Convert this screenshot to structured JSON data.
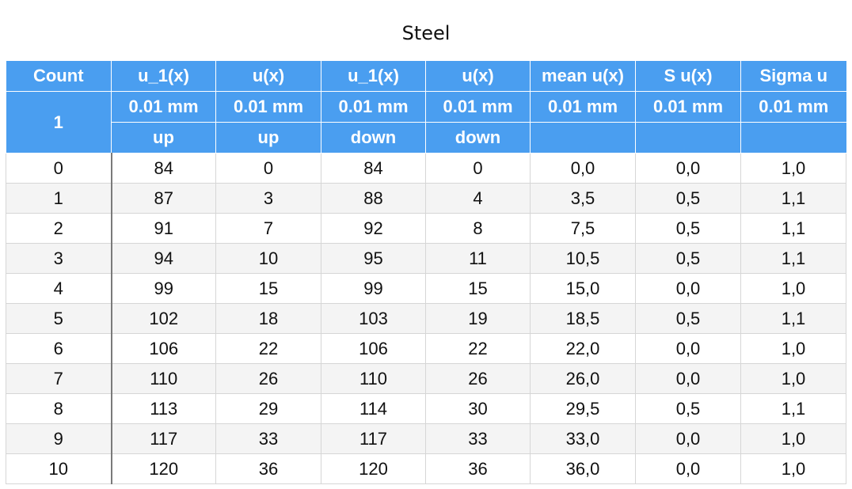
{
  "title": "Steel",
  "header": {
    "row1": [
      "Count",
      "u_1(x)",
      "u(x)",
      "u_1(x)",
      "u(x)",
      "mean u(x)",
      "S u(x)",
      "Sigma u"
    ],
    "count_sub": "1",
    "units": [
      "0.01 mm",
      "0.01 mm",
      "0.01 mm",
      "0.01 mm",
      "0.01 mm",
      "0.01 mm",
      "0.01 mm"
    ],
    "direction": [
      "up",
      "up",
      "down",
      "down",
      "",
      "",
      ""
    ]
  },
  "rows": [
    [
      "0",
      "84",
      "0",
      "84",
      "0",
      "0,0",
      "0,0",
      "1,0"
    ],
    [
      "1",
      "87",
      "3",
      "88",
      "4",
      "3,5",
      "0,5",
      "1,1"
    ],
    [
      "2",
      "91",
      "7",
      "92",
      "8",
      "7,5",
      "0,5",
      "1,1"
    ],
    [
      "3",
      "94",
      "10",
      "95",
      "11",
      "10,5",
      "0,5",
      "1,1"
    ],
    [
      "4",
      "99",
      "15",
      "99",
      "15",
      "15,0",
      "0,0",
      "1,0"
    ],
    [
      "5",
      "102",
      "18",
      "103",
      "19",
      "18,5",
      "0,5",
      "1,1"
    ],
    [
      "6",
      "106",
      "22",
      "106",
      "22",
      "22,0",
      "0,0",
      "1,0"
    ],
    [
      "7",
      "110",
      "26",
      "110",
      "26",
      "26,0",
      "0,0",
      "1,0"
    ],
    [
      "8",
      "113",
      "29",
      "114",
      "30",
      "29,5",
      "0,5",
      "1,1"
    ],
    [
      "9",
      "117",
      "33",
      "117",
      "33",
      "33,0",
      "0,0",
      "1,0"
    ],
    [
      "10",
      "120",
      "36",
      "120",
      "36",
      "36,0",
      "0,0",
      "1,0"
    ]
  ]
}
